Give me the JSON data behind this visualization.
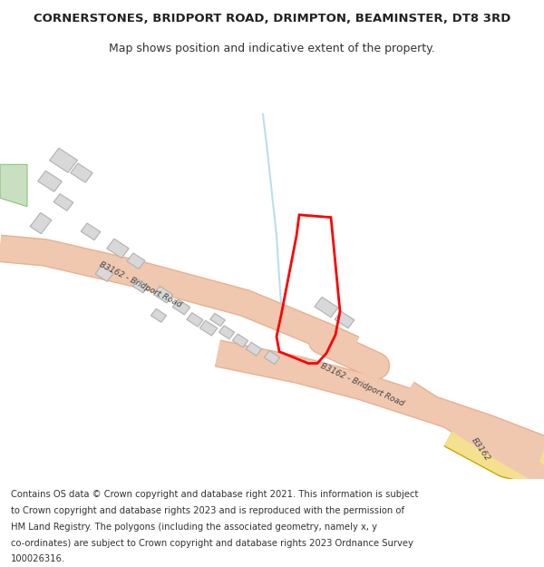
{
  "title": "CORNERSTONES, BRIDPORT ROAD, DRIMPTON, BEAMINSTER, DT8 3RD",
  "subtitle": "Map shows position and indicative extent of the property.",
  "footer_lines": [
    "Contains OS data © Crown copyright and database right 2021. This information is subject",
    "to Crown copyright and database rights 2023 and is reproduced with the permission of",
    "HM Land Registry. The polygons (including the associated geometry, namely x, y",
    "co-ordinates) are subject to Crown copyright and database rights 2023 Ordnance Survey",
    "100026316."
  ],
  "map_bg": "#f5f4f2",
  "road_color": "#f0c8b0",
  "road_stroke": "#e8b090",
  "stream_color": "#a8d8e8",
  "building_color": "#d8d8d8",
  "building_stroke": "#b0b0b0",
  "green_area_color": "#c8e0c0",
  "red_polygon_color": "#ff0000",
  "road_label_1": "B3162 - Bridport Road",
  "road_label_2": "B3162 - Bridport Road",
  "road_label_3": "B3162",
  "title_fontsize": 9.5,
  "subtitle_fontsize": 9,
  "footer_fontsize": 7.2
}
